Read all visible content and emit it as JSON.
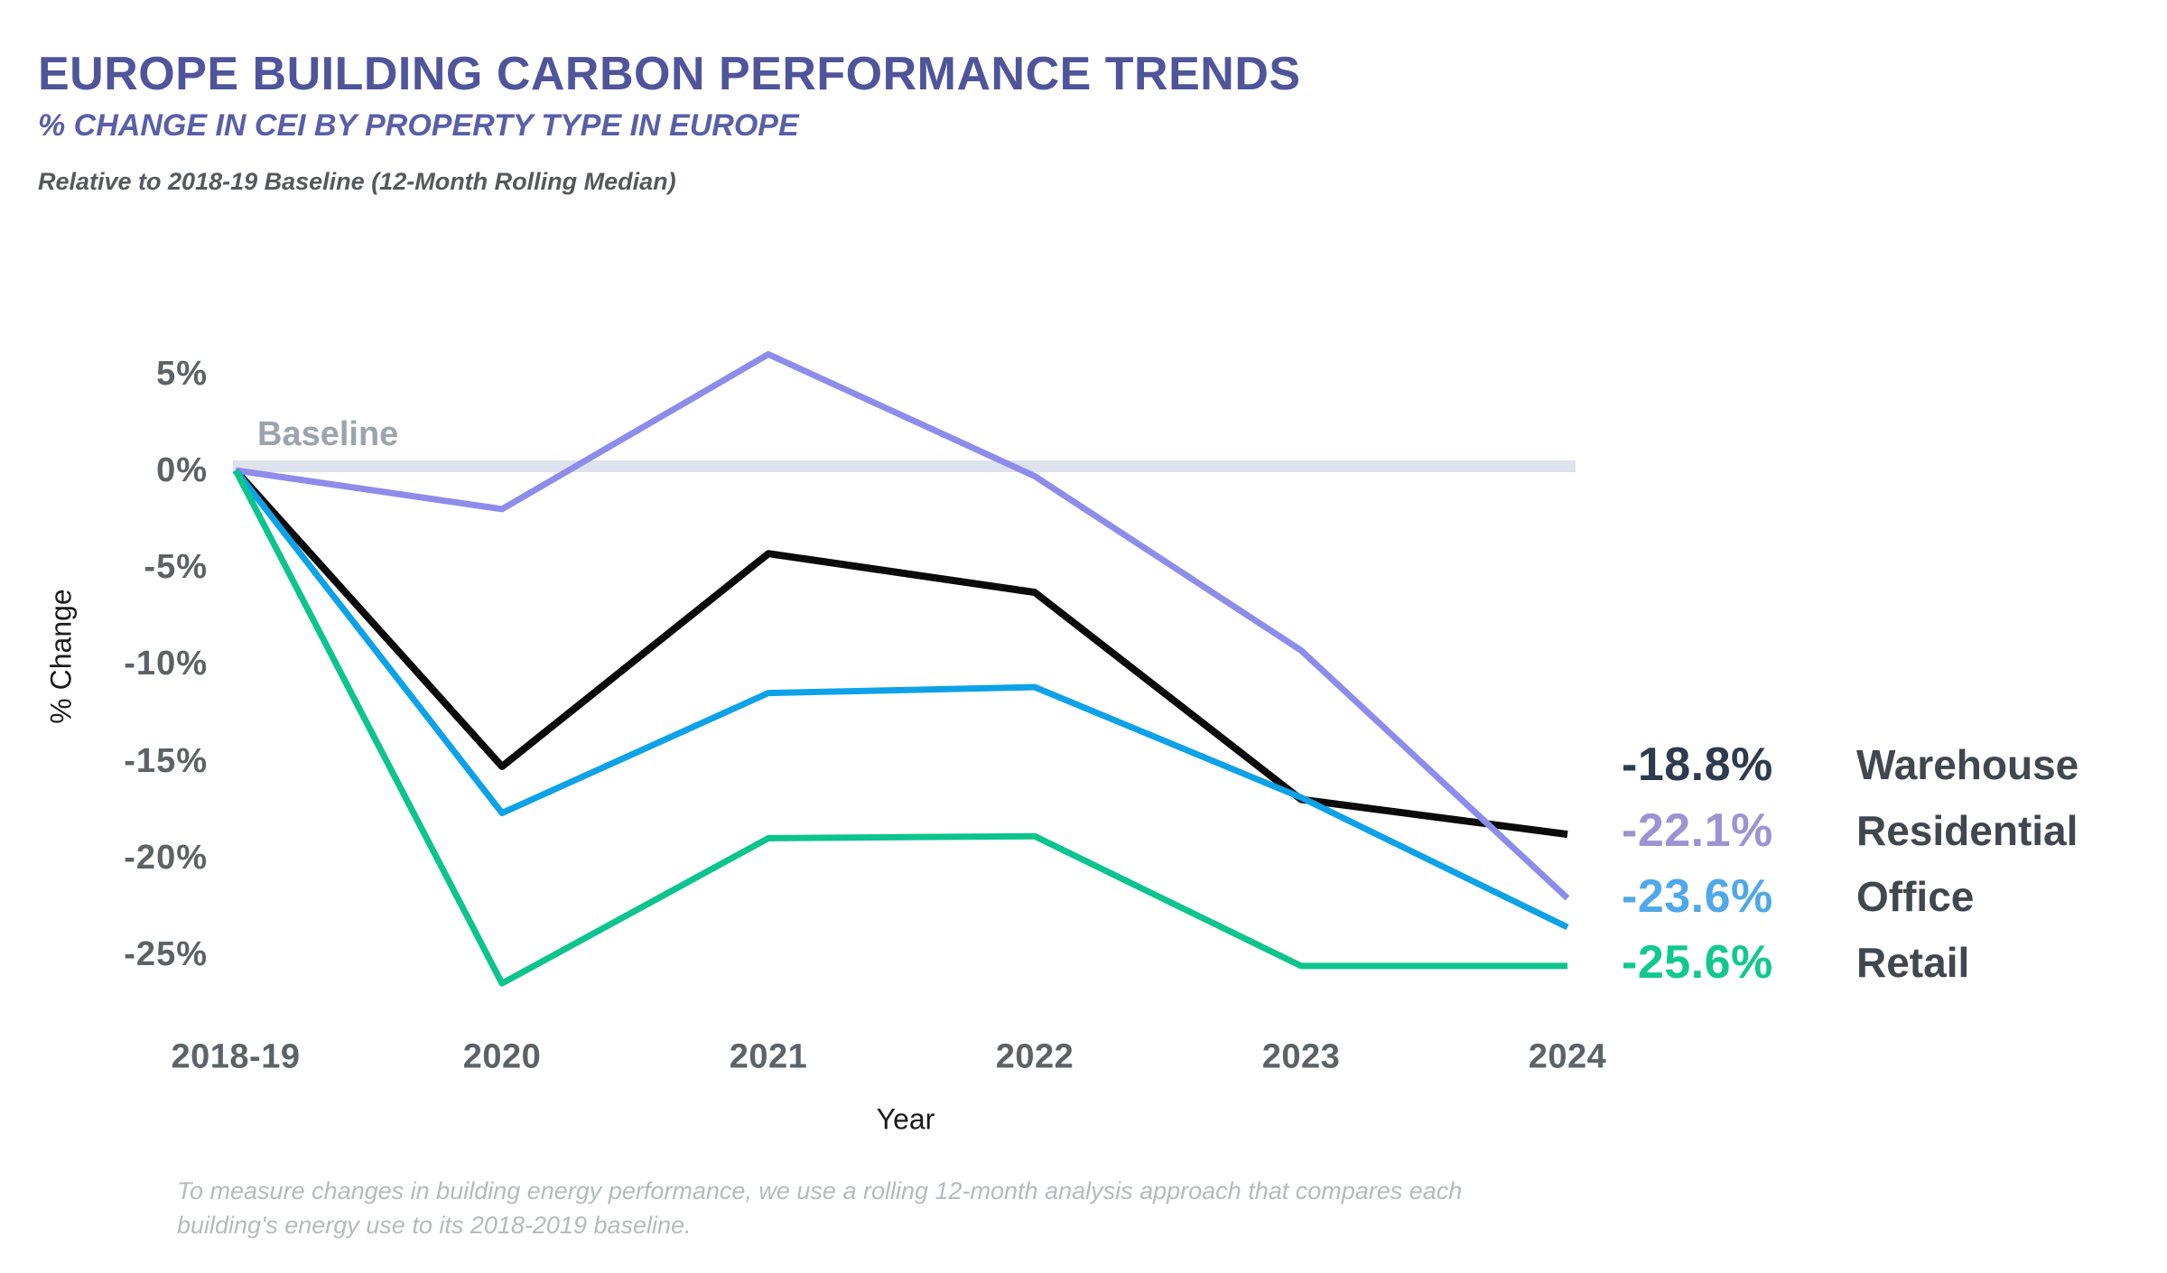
{
  "header": {
    "title": "EUROPE BUILDING CARBON PERFORMANCE TRENDS",
    "subtitle": "% CHANGE IN CEI BY PROPERTY TYPE IN EUROPE",
    "note": "Relative to 2018-19 Baseline (12-Month Rolling Median)"
  },
  "baseline": {
    "label": "Baseline"
  },
  "axes": {
    "y_label": "% Change",
    "x_label": "Year",
    "y_ticks": [
      {
        "label": "5%",
        "value": 5
      },
      {
        "label": "0%",
        "value": 0
      },
      {
        "label": "-5%",
        "value": -5
      },
      {
        "label": "-10%",
        "value": -10
      },
      {
        "label": "-15%",
        "value": -15
      },
      {
        "label": "-20%",
        "value": -20
      },
      {
        "label": "-25%",
        "value": -25
      }
    ],
    "x_ticks": [
      "2018-19",
      "2020",
      "2021",
      "2022",
      "2023",
      "2024"
    ]
  },
  "legend": {
    "items": [
      {
        "value": "-18.8%",
        "label": "Warehouse",
        "value_color": "#2E3A4D"
      },
      {
        "value": "-22.1%",
        "label": "Residential",
        "value_color": "#9D93D2"
      },
      {
        "value": "-23.6%",
        "label": "Office",
        "value_color": "#4FA8E8"
      },
      {
        "value": "-25.6%",
        "label": "Retail",
        "value_color": "#10C98F"
      }
    ]
  },
  "footnote": {
    "line1": "To measure changes in building energy performance, we use a rolling 12-month analysis approach that compares each",
    "line2": "building's energy use to its 2018-2019 baseline."
  },
  "colors": {
    "title": "#4F549B",
    "subtitle": "#5A5FA8",
    "note": "#55585C",
    "tick": "#5C6266",
    "axis_label": "#1A1A1A",
    "baseline_bar": "#DDE2ED",
    "baseline_text": "#9BA4AE",
    "legend_label": "#40474F",
    "footnote": "#B6BABC"
  },
  "chart_data": {
    "type": "line",
    "title": "EUROPE BUILDING CARBON PERFORMANCE TRENDS",
    "subtitle": "% CHANGE IN CEI BY PROPERTY TYPE IN EUROPE",
    "xlabel": "Year",
    "ylabel": "% Change",
    "ylim": [
      -27,
      7
    ],
    "grid": false,
    "legend_position": "right",
    "baseline_value": 0,
    "categories": [
      "2018-19",
      "2020",
      "2021",
      "2022",
      "2023",
      "2024"
    ],
    "series": [
      {
        "name": "Warehouse",
        "color": "#0A0A0A",
        "final_label": "-18.8%",
        "values": [
          0,
          -15.3,
          -4.3,
          -6.3,
          -17.0,
          -18.8
        ]
      },
      {
        "name": "Residential",
        "color": "#8E8CEB",
        "final_label": "-22.1%",
        "values": [
          0,
          -2.0,
          6.0,
          -0.3,
          -9.3,
          -22.1
        ]
      },
      {
        "name": "Office",
        "color": "#0DA2E8",
        "final_label": "-23.6%",
        "values": [
          0,
          -17.7,
          -11.5,
          -11.2,
          -16.9,
          -23.6
        ]
      },
      {
        "name": "Retail",
        "color": "#0CC48D",
        "final_label": "-25.6%",
        "values": [
          0,
          -26.5,
          -19.0,
          -18.9,
          -25.6,
          -25.6
        ]
      }
    ]
  }
}
